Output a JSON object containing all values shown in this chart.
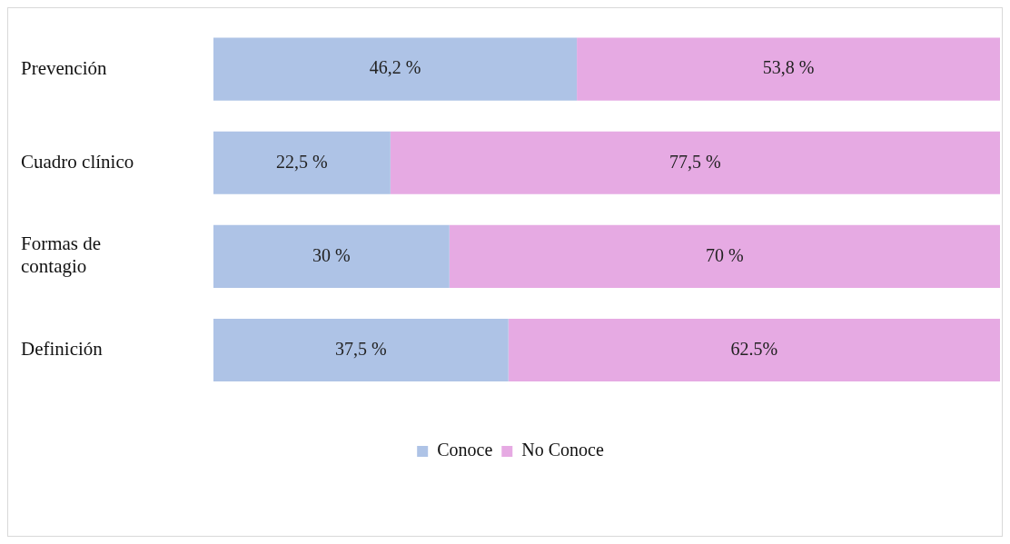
{
  "chart_data": {
    "type": "bar",
    "orientation": "horizontal",
    "stacked": true,
    "categories": [
      "Prevención",
      "Cuadro clínico",
      "Formas de contagio",
      "Definición"
    ],
    "series": [
      {
        "name": "Conoce",
        "color": "#aec3e6",
        "values": [
          46.2,
          22.5,
          30,
          37.5
        ],
        "value_labels": [
          "46,2 %",
          "22,5 %",
          "30 %",
          "37,5 %"
        ]
      },
      {
        "name": "No Conoce",
        "color": "#e6aae3",
        "values": [
          53.8,
          77.5,
          70,
          62.5
        ],
        "value_labels": [
          "53,8 %",
          "77,5 %",
          "70 %",
          "62.5%"
        ]
      }
    ],
    "legend": "bottom"
  }
}
